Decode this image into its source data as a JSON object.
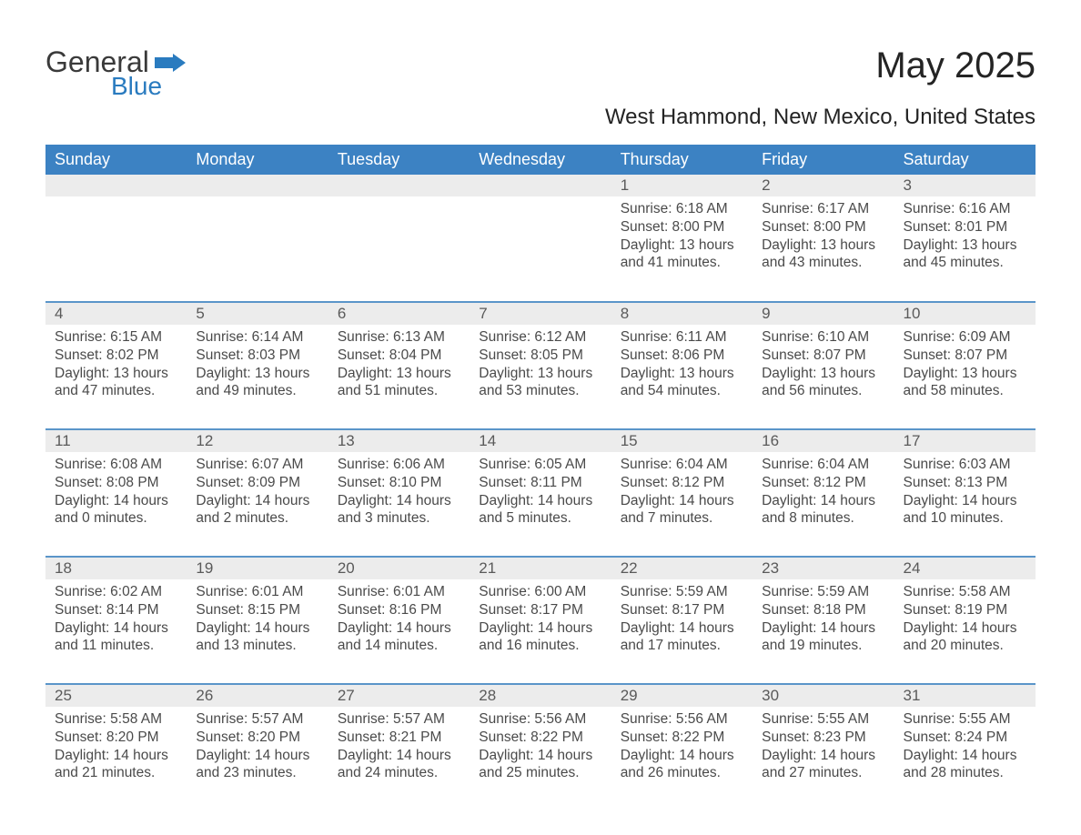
{
  "logo": {
    "text_general": "General",
    "text_blue": "Blue",
    "flag_color": "#2a7bbf"
  },
  "title": "May 2025",
  "subtitle": "West Hammond, New Mexico, United States",
  "colors": {
    "header_bg": "#3c82c3",
    "header_text": "#ffffff",
    "row_divider": "#5a95c9",
    "daynum_bg": "#ececec",
    "body_text": "#4a4a4a",
    "title_text": "#242424",
    "background": "#ffffff"
  },
  "fonts": {
    "title_size": 40,
    "subtitle_size": 24,
    "th_size": 18,
    "cell_size": 15.5
  },
  "weekdays": [
    "Sunday",
    "Monday",
    "Tuesday",
    "Wednesday",
    "Thursday",
    "Friday",
    "Saturday"
  ],
  "weeks": [
    [
      null,
      null,
      null,
      null,
      {
        "n": "1",
        "sr": "Sunrise: 6:18 AM",
        "ss": "Sunset: 8:00 PM",
        "d1": "Daylight: 13 hours",
        "d2": "and 41 minutes."
      },
      {
        "n": "2",
        "sr": "Sunrise: 6:17 AM",
        "ss": "Sunset: 8:00 PM",
        "d1": "Daylight: 13 hours",
        "d2": "and 43 minutes."
      },
      {
        "n": "3",
        "sr": "Sunrise: 6:16 AM",
        "ss": "Sunset: 8:01 PM",
        "d1": "Daylight: 13 hours",
        "d2": "and 45 minutes."
      }
    ],
    [
      {
        "n": "4",
        "sr": "Sunrise: 6:15 AM",
        "ss": "Sunset: 8:02 PM",
        "d1": "Daylight: 13 hours",
        "d2": "and 47 minutes."
      },
      {
        "n": "5",
        "sr": "Sunrise: 6:14 AM",
        "ss": "Sunset: 8:03 PM",
        "d1": "Daylight: 13 hours",
        "d2": "and 49 minutes."
      },
      {
        "n": "6",
        "sr": "Sunrise: 6:13 AM",
        "ss": "Sunset: 8:04 PM",
        "d1": "Daylight: 13 hours",
        "d2": "and 51 minutes."
      },
      {
        "n": "7",
        "sr": "Sunrise: 6:12 AM",
        "ss": "Sunset: 8:05 PM",
        "d1": "Daylight: 13 hours",
        "d2": "and 53 minutes."
      },
      {
        "n": "8",
        "sr": "Sunrise: 6:11 AM",
        "ss": "Sunset: 8:06 PM",
        "d1": "Daylight: 13 hours",
        "d2": "and 54 minutes."
      },
      {
        "n": "9",
        "sr": "Sunrise: 6:10 AM",
        "ss": "Sunset: 8:07 PM",
        "d1": "Daylight: 13 hours",
        "d2": "and 56 minutes."
      },
      {
        "n": "10",
        "sr": "Sunrise: 6:09 AM",
        "ss": "Sunset: 8:07 PM",
        "d1": "Daylight: 13 hours",
        "d2": "and 58 minutes."
      }
    ],
    [
      {
        "n": "11",
        "sr": "Sunrise: 6:08 AM",
        "ss": "Sunset: 8:08 PM",
        "d1": "Daylight: 14 hours",
        "d2": "and 0 minutes."
      },
      {
        "n": "12",
        "sr": "Sunrise: 6:07 AM",
        "ss": "Sunset: 8:09 PM",
        "d1": "Daylight: 14 hours",
        "d2": "and 2 minutes."
      },
      {
        "n": "13",
        "sr": "Sunrise: 6:06 AM",
        "ss": "Sunset: 8:10 PM",
        "d1": "Daylight: 14 hours",
        "d2": "and 3 minutes."
      },
      {
        "n": "14",
        "sr": "Sunrise: 6:05 AM",
        "ss": "Sunset: 8:11 PM",
        "d1": "Daylight: 14 hours",
        "d2": "and 5 minutes."
      },
      {
        "n": "15",
        "sr": "Sunrise: 6:04 AM",
        "ss": "Sunset: 8:12 PM",
        "d1": "Daylight: 14 hours",
        "d2": "and 7 minutes."
      },
      {
        "n": "16",
        "sr": "Sunrise: 6:04 AM",
        "ss": "Sunset: 8:12 PM",
        "d1": "Daylight: 14 hours",
        "d2": "and 8 minutes."
      },
      {
        "n": "17",
        "sr": "Sunrise: 6:03 AM",
        "ss": "Sunset: 8:13 PM",
        "d1": "Daylight: 14 hours",
        "d2": "and 10 minutes."
      }
    ],
    [
      {
        "n": "18",
        "sr": "Sunrise: 6:02 AM",
        "ss": "Sunset: 8:14 PM",
        "d1": "Daylight: 14 hours",
        "d2": "and 11 minutes."
      },
      {
        "n": "19",
        "sr": "Sunrise: 6:01 AM",
        "ss": "Sunset: 8:15 PM",
        "d1": "Daylight: 14 hours",
        "d2": "and 13 minutes."
      },
      {
        "n": "20",
        "sr": "Sunrise: 6:01 AM",
        "ss": "Sunset: 8:16 PM",
        "d1": "Daylight: 14 hours",
        "d2": "and 14 minutes."
      },
      {
        "n": "21",
        "sr": "Sunrise: 6:00 AM",
        "ss": "Sunset: 8:17 PM",
        "d1": "Daylight: 14 hours",
        "d2": "and 16 minutes."
      },
      {
        "n": "22",
        "sr": "Sunrise: 5:59 AM",
        "ss": "Sunset: 8:17 PM",
        "d1": "Daylight: 14 hours",
        "d2": "and 17 minutes."
      },
      {
        "n": "23",
        "sr": "Sunrise: 5:59 AM",
        "ss": "Sunset: 8:18 PM",
        "d1": "Daylight: 14 hours",
        "d2": "and 19 minutes."
      },
      {
        "n": "24",
        "sr": "Sunrise: 5:58 AM",
        "ss": "Sunset: 8:19 PM",
        "d1": "Daylight: 14 hours",
        "d2": "and 20 minutes."
      }
    ],
    [
      {
        "n": "25",
        "sr": "Sunrise: 5:58 AM",
        "ss": "Sunset: 8:20 PM",
        "d1": "Daylight: 14 hours",
        "d2": "and 21 minutes."
      },
      {
        "n": "26",
        "sr": "Sunrise: 5:57 AM",
        "ss": "Sunset: 8:20 PM",
        "d1": "Daylight: 14 hours",
        "d2": "and 23 minutes."
      },
      {
        "n": "27",
        "sr": "Sunrise: 5:57 AM",
        "ss": "Sunset: 8:21 PM",
        "d1": "Daylight: 14 hours",
        "d2": "and 24 minutes."
      },
      {
        "n": "28",
        "sr": "Sunrise: 5:56 AM",
        "ss": "Sunset: 8:22 PM",
        "d1": "Daylight: 14 hours",
        "d2": "and 25 minutes."
      },
      {
        "n": "29",
        "sr": "Sunrise: 5:56 AM",
        "ss": "Sunset: 8:22 PM",
        "d1": "Daylight: 14 hours",
        "d2": "and 26 minutes."
      },
      {
        "n": "30",
        "sr": "Sunrise: 5:55 AM",
        "ss": "Sunset: 8:23 PM",
        "d1": "Daylight: 14 hours",
        "d2": "and 27 minutes."
      },
      {
        "n": "31",
        "sr": "Sunrise: 5:55 AM",
        "ss": "Sunset: 8:24 PM",
        "d1": "Daylight: 14 hours",
        "d2": "and 28 minutes."
      }
    ]
  ]
}
